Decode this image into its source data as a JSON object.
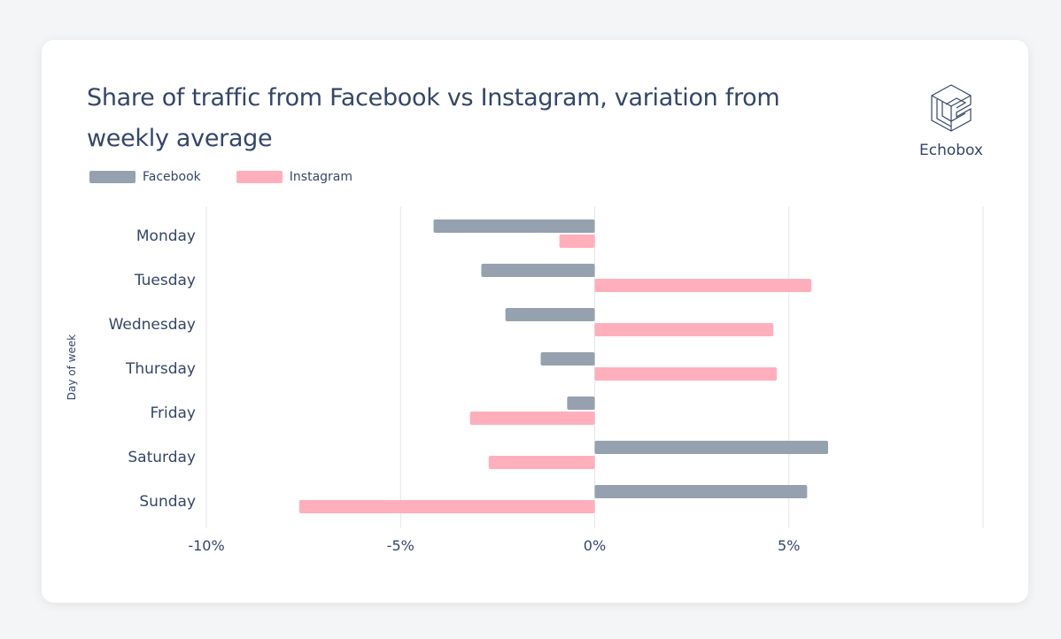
{
  "title": "Share of traffic from Facebook vs Instagram, variation from weekly average",
  "logo": {
    "text": "Echobox"
  },
  "colors": {
    "facebook": "#95a1ae",
    "instagram": "#ffafbc",
    "text": "#34466a",
    "grid": "#e6e6e6"
  },
  "chart_data": {
    "type": "bar",
    "orientation": "horizontal",
    "title": "Share of traffic from Facebook vs Instagram, variation from weekly average",
    "ylabel": "Day of week",
    "xlabel": "",
    "categories": [
      "Monday",
      "Tuesday",
      "Wednesday",
      "Thursday",
      "Friday",
      "Saturday",
      "Sunday"
    ],
    "series": [
      {
        "name": "Facebook",
        "values": [
          -4.15,
          -2.92,
          -2.3,
          -1.39,
          -0.71,
          6.01,
          5.47
        ]
      },
      {
        "name": "Instagram",
        "values": [
          -0.91,
          5.58,
          4.6,
          4.69,
          -3.21,
          -2.73,
          -7.61
        ]
      }
    ],
    "xlim": [
      -10,
      10
    ],
    "xticks": [
      -10,
      -5,
      0,
      5,
      10
    ],
    "xtick_labels": [
      "-10%",
      "-5%",
      "0%",
      "5%",
      ""
    ],
    "grid": true,
    "legend_position": "top-left"
  }
}
